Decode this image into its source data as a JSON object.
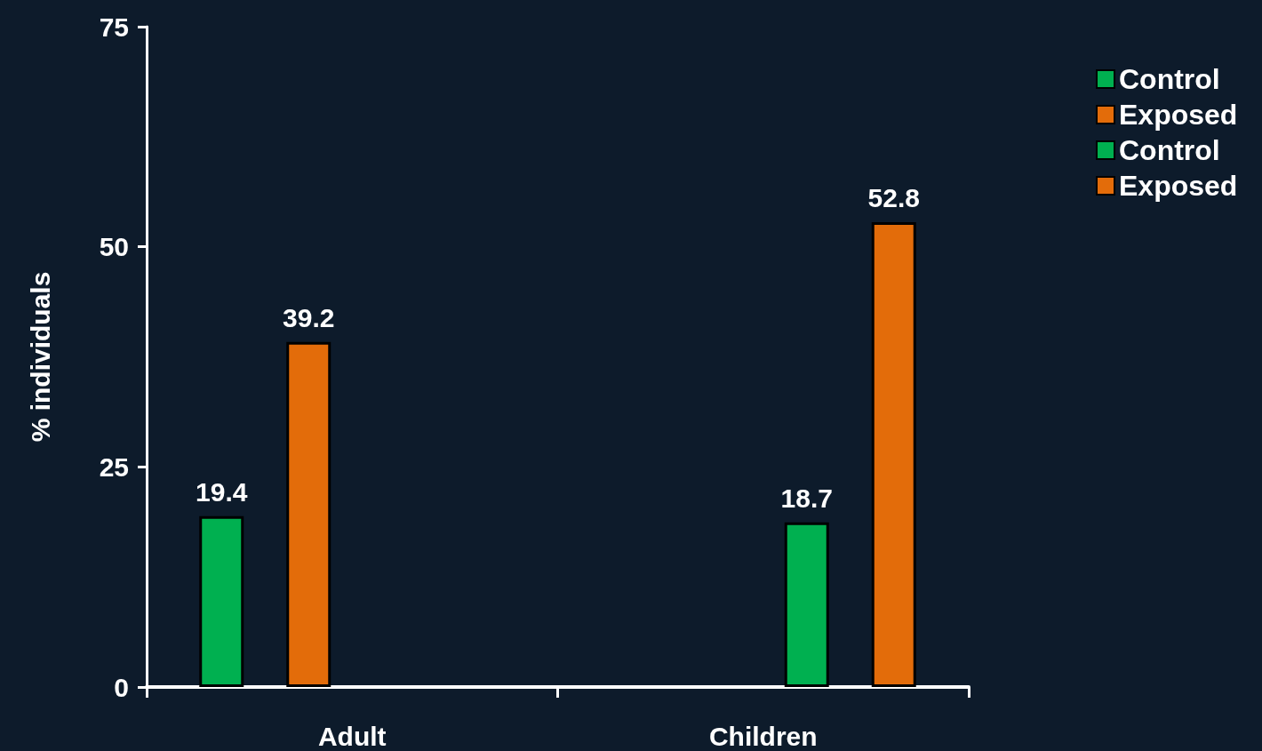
{
  "chart_data": {
    "type": "bar",
    "ylabel": "% individuals",
    "categories": [
      "Adult",
      "Children"
    ],
    "series": [
      {
        "name": "Control",
        "color": "#00b050",
        "values": [
          19.4,
          null
        ]
      },
      {
        "name": "Exposed",
        "color": "#e36c0a",
        "values": [
          39.2,
          null
        ]
      },
      {
        "name": "Control",
        "color": "#00b050",
        "values": [
          null,
          18.7
        ]
      },
      {
        "name": "Exposed",
        "color": "#e36c0a",
        "values": [
          null,
          52.8
        ]
      }
    ],
    "ylim": [
      0,
      75
    ],
    "yticks": [
      0,
      25,
      50,
      75
    ],
    "data_labels": true,
    "grid": false,
    "legend": "top right"
  }
}
